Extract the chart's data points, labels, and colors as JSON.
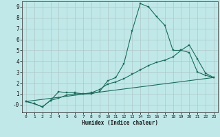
{
  "xlabel": "Humidex (Indice chaleur)",
  "background_color": "#c0e8e8",
  "grid_color": "#b0c8c8",
  "line_color": "#1a6b5a",
  "xlim": [
    -0.5,
    23.5
  ],
  "ylim": [
    -0.7,
    9.5
  ],
  "xticks": [
    0,
    1,
    2,
    3,
    4,
    5,
    6,
    7,
    8,
    9,
    10,
    11,
    12,
    13,
    14,
    15,
    16,
    17,
    18,
    19,
    20,
    21,
    22,
    23
  ],
  "yticks": [
    0,
    1,
    2,
    3,
    4,
    5,
    6,
    7,
    8,
    9
  ],
  "ytick_labels": [
    "-0",
    "1",
    "2",
    "3",
    "4",
    "5",
    "6",
    "7",
    "8",
    "9"
  ],
  "line1_x": [
    0,
    1,
    2,
    3,
    4,
    5,
    6,
    7,
    8,
    9,
    10,
    11,
    12,
    13,
    14,
    15,
    16,
    17,
    18,
    19,
    20,
    21,
    22,
    23
  ],
  "line1_y": [
    0.3,
    0.1,
    -0.2,
    0.4,
    1.2,
    1.1,
    1.1,
    1.0,
    1.0,
    1.2,
    2.2,
    2.5,
    3.8,
    6.8,
    9.3,
    9.0,
    8.1,
    7.3,
    5.0,
    5.0,
    5.5,
    4.2,
    2.9,
    2.5
  ],
  "line2_x": [
    0,
    1,
    2,
    3,
    4,
    5,
    6,
    7,
    8,
    9,
    10,
    11,
    12,
    13,
    14,
    15,
    16,
    17,
    18,
    19,
    20,
    21,
    22,
    23
  ],
  "line2_y": [
    0.3,
    0.1,
    -0.2,
    0.4,
    0.6,
    0.9,
    1.0,
    1.0,
    1.1,
    1.4,
    1.9,
    2.1,
    2.4,
    2.8,
    3.2,
    3.6,
    3.9,
    4.1,
    4.4,
    5.0,
    4.8,
    3.0,
    2.7,
    2.5
  ],
  "line3_x": [
    0,
    23
  ],
  "line3_y": [
    0.3,
    2.5
  ]
}
